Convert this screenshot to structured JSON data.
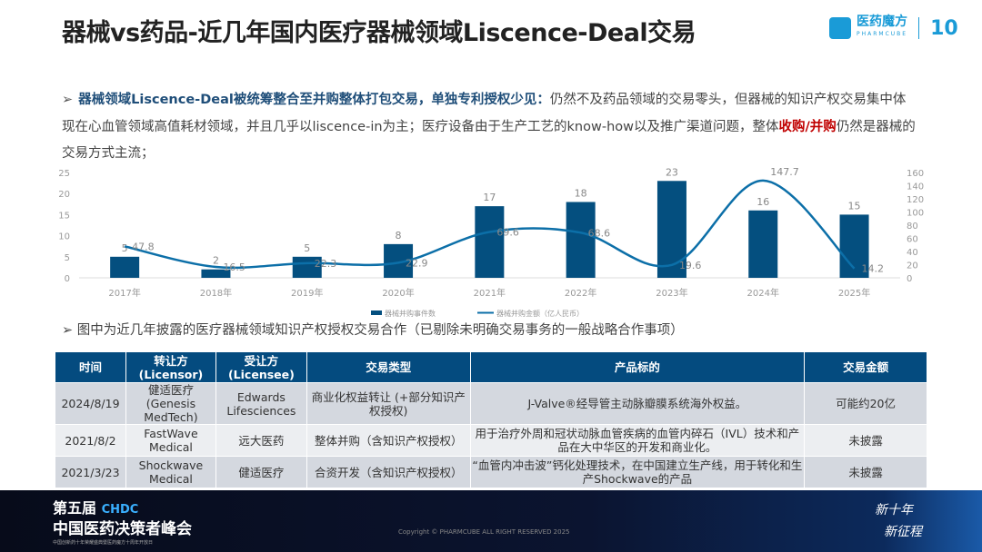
{
  "header": {
    "title": "器械vs药品-近几年国内医疗器械领域Liscence-Deal交易",
    "logo_text": "医药魔方",
    "logo_sub": "PHARMCUBE",
    "logo_badge": "10"
  },
  "intro": {
    "bold": "器械领域Liscence-Deal被统筹整合至并购整体打包交易，单独专利授权少见：",
    "text1": "仍然不及药品领域的交易零头，但器械的知识产权交易集中体现在心血管领域高值耗材领域，并且几乎以liscence-in为主；医疗设备由于生产工艺的know-how以及推广渠道问题，整体",
    "red": "收购/并购",
    "text2": "仍然是器械的交易方式主流；"
  },
  "chart_data": {
    "type": "bar+line",
    "categories": [
      "2017年",
      "2018年",
      "2019年",
      "2020年",
      "2021年",
      "2022年",
      "2023年",
      "2024年",
      "2025年"
    ],
    "series": [
      {
        "name": "器械并购事件数",
        "type": "bar",
        "axis": "left",
        "values": [
          5,
          2,
          5,
          8,
          17,
          18,
          23,
          16,
          15
        ],
        "color": "#044f7f"
      },
      {
        "name": "器械并购金额（亿人民币）",
        "type": "line",
        "axis": "right",
        "values": [
          47.8,
          16.5,
          22.3,
          22.9,
          69.6,
          68.6,
          19.6,
          147.7,
          14.2
        ],
        "color": "#0c6fa8"
      }
    ],
    "ylim_left": [
      0,
      25
    ],
    "yticks_left": [
      0,
      5,
      10,
      15,
      20,
      25
    ],
    "ylim_right": [
      0,
      160
    ],
    "yticks_right": [
      0,
      20,
      40,
      60,
      80,
      100,
      120,
      140,
      160
    ],
    "legend": "bottom",
    "grid": false
  },
  "bullet2": "图中为近几年披露的医疗器械领域知识产权授权交易合作（已剔除未明确交易事务的一般战略合作事项）",
  "table": {
    "headers": [
      "时间",
      "转让方 (Licensor)",
      "受让方 (Licensee)",
      "交易类型",
      "产品标的",
      "交易金额"
    ],
    "rows": [
      [
        "2024/8/19",
        "健适医疗 (Genesis MedTech)",
        "Edwards Lifesciences",
        "商业化权益转让 (+部分知识产权授权)",
        "J-Valve®经导管主动脉瓣膜系统海外权益。",
        "可能约20亿"
      ],
      [
        "2021/8/2",
        "FastWave Medical",
        "远大医药",
        "整体并购（含知识产权授权）",
        "用于治疗外周和冠状动脉血管疾病的血管内碎石（IVL）技术和产品在大中华区的开发和商业化。",
        "未披露"
      ],
      [
        "2021/3/23",
        "Shockwave Medical",
        "健适医疗",
        "合资开发（含知识产权授权）",
        "“血管内冲击波”钙化处理技术，在中国建立生产线，用于转化和生产Shockwave的产品",
        "未披露"
      ]
    ]
  },
  "footer": {
    "edition": "第五届",
    "chdc": "CHDC",
    "summit": "中国医药决策者峰会",
    "tagline": "中国创新药十年荣耀盛典暨医药魔方十周年开放日",
    "copyright": "Copyright © PHARMCUBE ALL RIGHT RESERVED 2025",
    "slogan1": "新十年",
    "slogan2": "新征程"
  }
}
